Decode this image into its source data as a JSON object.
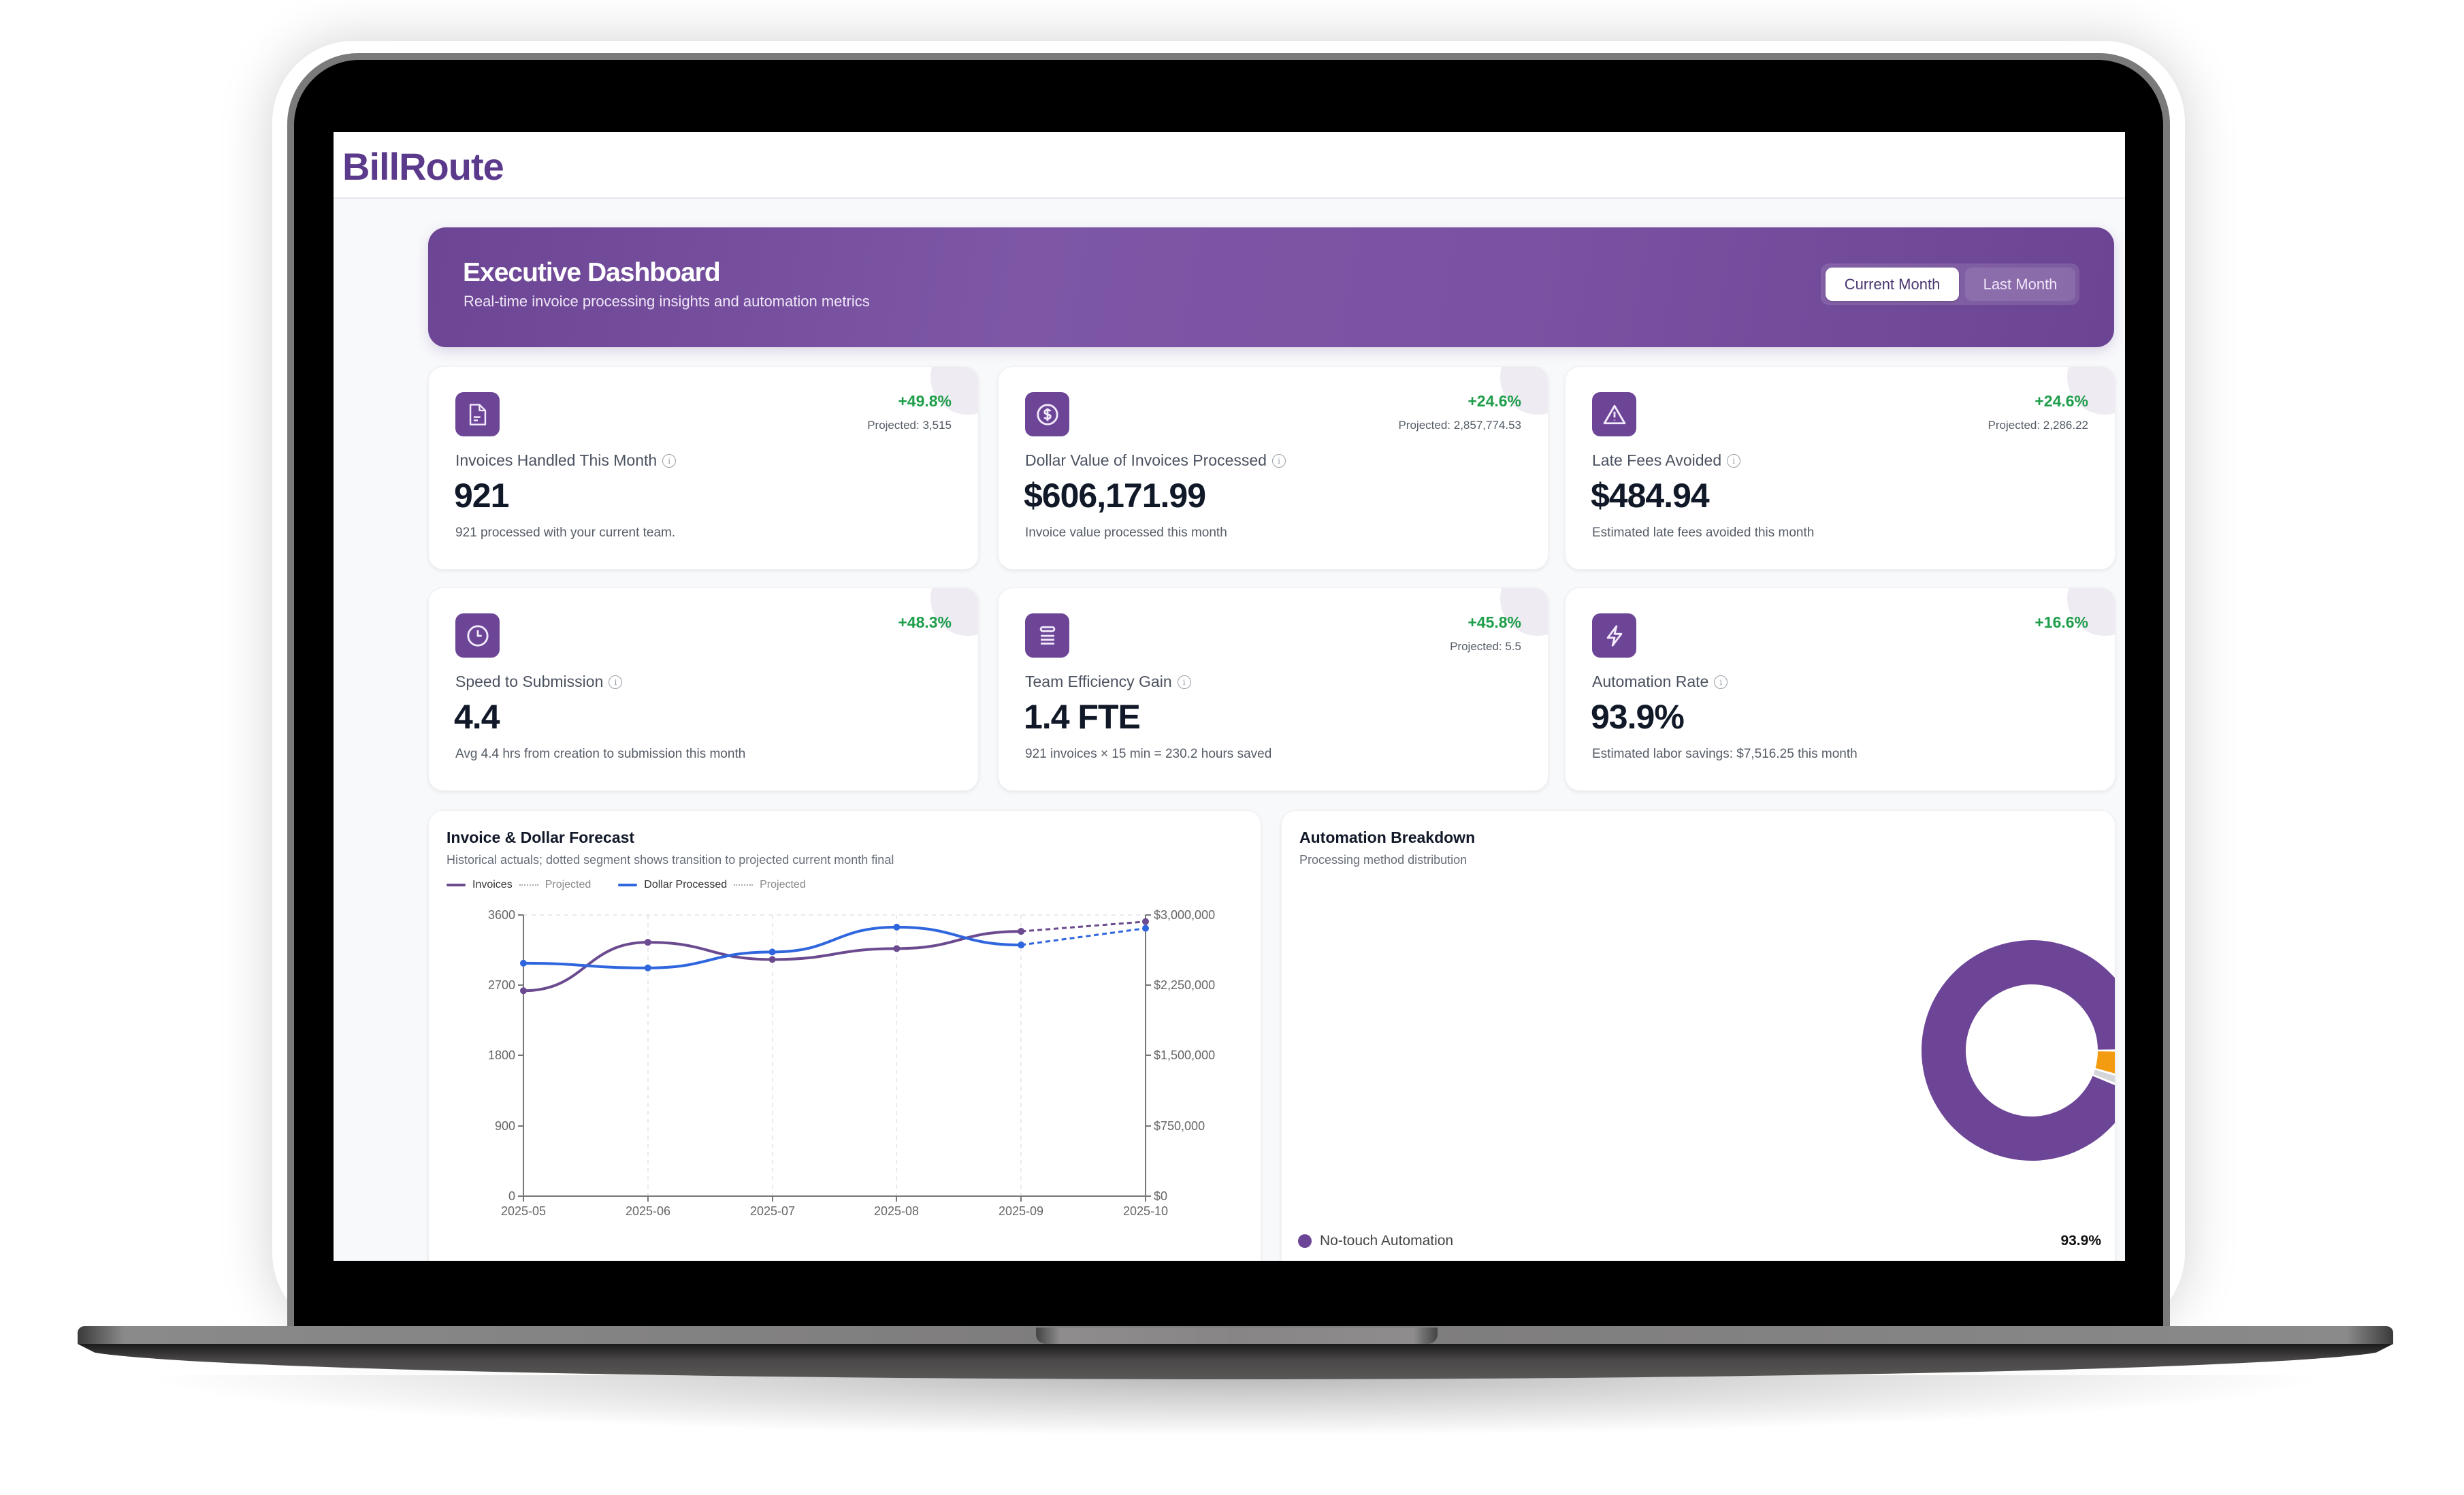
{
  "app": {
    "name": "BillRoute"
  },
  "banner": {
    "title": "Executive Dashboard",
    "subtitle": "Real-time invoice processing insights and automation metrics",
    "toggle": {
      "options": [
        "Current Month",
        "Last Month"
      ],
      "selected": "Current Month"
    }
  },
  "colors": {
    "brand": "#6d4597",
    "positive": "#1e9e4a",
    "invoices_line": "#6b4a8f",
    "dollars_line": "#2f66de",
    "automation_orange": "#f39c12",
    "other_gray": "#d4d6da"
  },
  "metrics": [
    {
      "icon": "document-icon",
      "change": "+49.8%",
      "projected": "Projected: 3,515",
      "label": "Invoices Handled This Month",
      "value": "921",
      "desc": "921 processed with your current team."
    },
    {
      "icon": "dollar-circle-icon",
      "change": "+24.6%",
      "projected": "Projected: 2,857,774.53",
      "label": "Dollar Value of Invoices Processed",
      "value": "$606,171.99",
      "desc": "Invoice value processed this month"
    },
    {
      "icon": "warning-triangle-icon",
      "change": "+24.6%",
      "projected": "Projected: 2,286.22",
      "label": "Late Fees Avoided",
      "value": "$484.94",
      "desc": "Estimated late fees avoided this month"
    },
    {
      "icon": "clock-icon",
      "change": "+48.3%",
      "projected": "",
      "label": "Speed to Submission",
      "value": "4.4",
      "desc": "Avg 4.4 hrs from creation to submission this month"
    },
    {
      "icon": "stack-icon",
      "change": "+45.8%",
      "projected": "Projected: 5.5",
      "label": "Team Efficiency Gain",
      "value": "1.4 FTE",
      "desc": "921 invoices × 15 min = 230.2 hours saved"
    },
    {
      "icon": "lightning-icon",
      "change": "+16.6%",
      "projected": "",
      "label": "Automation Rate",
      "value": "93.9%",
      "desc": "Estimated labor savings: $7,516.25 this month"
    }
  ],
  "forecast": {
    "title": "Invoice & Dollar Forecast",
    "subtitle": "Historical actuals; dotted segment shows transition to projected current month final",
    "legend": [
      "Invoices",
      "Projected",
      "Dollar Processed",
      "Projected"
    ],
    "left_ticks": [
      "0",
      "900",
      "1800",
      "2700",
      "3600"
    ],
    "right_ticks": [
      "$0",
      "$750,000",
      "$1,500,000",
      "$2,250,000",
      "$3,000,000"
    ],
    "x_ticks": [
      "2025-05",
      "2025-06",
      "2025-07",
      "2025-08",
      "2025-09",
      "2025-10"
    ]
  },
  "automation": {
    "title": "Automation Breakdown",
    "subtitle": "Processing method distribution",
    "legend": [
      {
        "label": "No-touch Automation",
        "value": "93.9%"
      }
    ]
  },
  "chart_data": [
    {
      "type": "line",
      "title": "Invoice & Dollar Forecast",
      "subtitle": "Historical actuals; dotted segment shows transition to projected current month final",
      "x": [
        "2025-05",
        "2025-06",
        "2025-07",
        "2025-08",
        "2025-09",
        "2025-10"
      ],
      "series": [
        {
          "name": "Invoices",
          "axis": "left",
          "values": [
            2630,
            3250,
            3030,
            3170,
            3390,
            null
          ],
          "color": "#6b4a8f"
        },
        {
          "name": "Invoices Projected",
          "axis": "left",
          "style": "dotted",
          "values": [
            null,
            null,
            null,
            null,
            3390,
            3515
          ],
          "color": "#6b4a8f"
        },
        {
          "name": "Dollar Processed",
          "axis": "right",
          "values": [
            2485000,
            2435000,
            2605000,
            2870000,
            2680000,
            null
          ],
          "color": "#2f66de"
        },
        {
          "name": "Dollar Processed Projected",
          "axis": "right",
          "style": "dotted",
          "values": [
            null,
            null,
            null,
            null,
            2680000,
            2857774.53
          ],
          "color": "#2f66de"
        }
      ],
      "ylabel_left": "",
      "ylabel_right": "",
      "xlabel": "",
      "ylim_left": [
        0,
        3600
      ],
      "ylim_right": [
        0,
        3000000
      ],
      "legend": [
        "Invoices",
        "Projected",
        "Dollar Processed",
        "Projected"
      ],
      "legend_position": "top-left",
      "grid": "vertical dashed"
    },
    {
      "type": "pie",
      "donut": true,
      "title": "Automation Breakdown",
      "subtitle": "Processing method distribution",
      "categories": [
        "No-touch Automation",
        "Other (orange)",
        "Other (gray)"
      ],
      "values": [
        93.9,
        4.5,
        1.6
      ],
      "colors": [
        "#6d4597",
        "#f39c12",
        "#d4d6da"
      ]
    }
  ]
}
